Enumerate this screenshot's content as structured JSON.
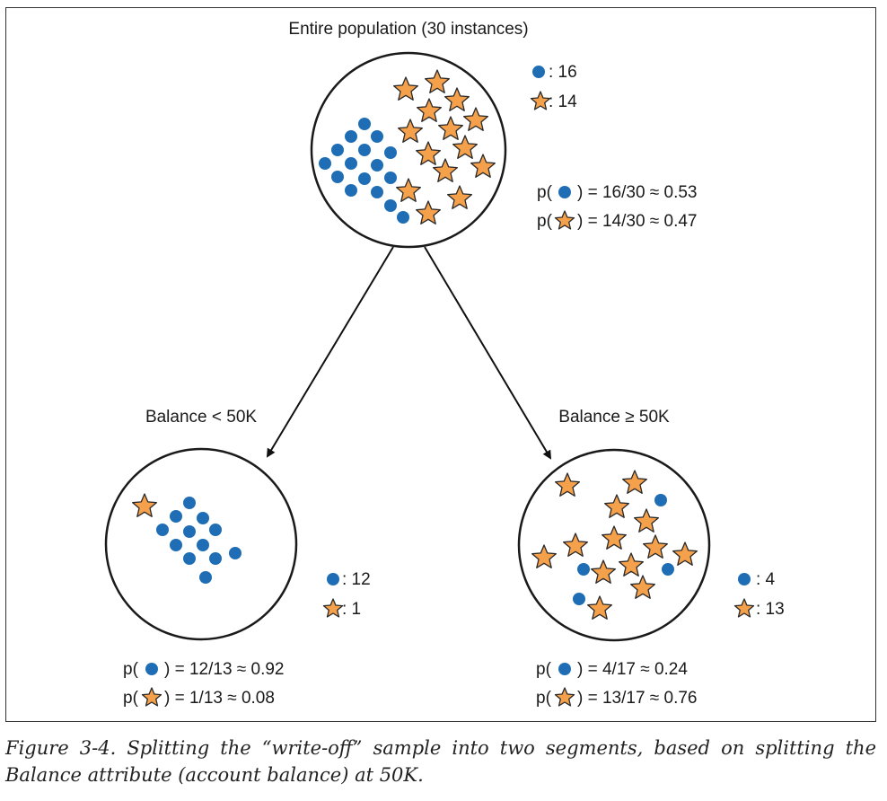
{
  "nodes": {
    "root": {
      "title": "Entire population (30 instances)",
      "circle_count_label": ": 16",
      "star_count_label": ": 14",
      "p_prefix": "p(",
      "p_circle_expr": ") = 16/30 ≈ 0.53",
      "p_star_expr": ") = 14/30 ≈ 0.47"
    },
    "left": {
      "title": "Balance < 50K",
      "circle_count_label": ": 12",
      "star_count_label": ": 1",
      "p_prefix": "p(",
      "p_circle_expr": ") = 12/13 ≈ 0.92",
      "p_star_expr": ") = 1/13 ≈ 0.08"
    },
    "right": {
      "title": "Balance ≥ 50K",
      "circle_count_label": ": 4",
      "star_count_label": ": 13",
      "p_prefix": "p(",
      "p_circle_expr": ") = 4/17 ≈ 0.24",
      "p_star_expr": ") = 13/17 ≈ 0.76"
    }
  },
  "colors": {
    "circle_marker": "#1f6eb5",
    "star_marker": "#f5a04a",
    "star_outline": "#2a2a2a",
    "node_outline": "#1a1a1a"
  },
  "caption": "Figure 3-4. Splitting the “write-off” sample into two segments, based on splitting the Balance attribute (account balance) at 50K."
}
